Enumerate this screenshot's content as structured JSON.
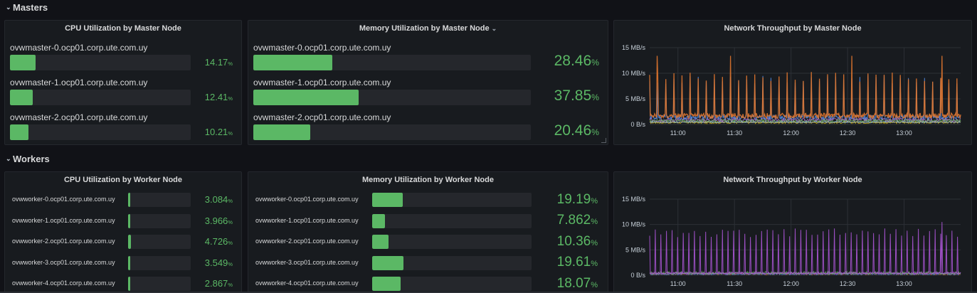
{
  "rows": {
    "masters": {
      "title": "Masters"
    },
    "workers": {
      "title": "Workers"
    }
  },
  "panels": {
    "cpu_masters": {
      "title": "CPU Utilization by Master Node",
      "items": [
        {
          "label": "ovwmaster-0.ocp01.corp.ute.com.uy",
          "value": "14.17",
          "unit": "%",
          "fraction": 0.1417
        },
        {
          "label": "ovwmaster-1.ocp01.corp.ute.com.uy",
          "value": "12.41",
          "unit": "%",
          "fraction": 0.1241
        },
        {
          "label": "ovwmaster-2.ocp01.corp.ute.com.uy",
          "value": "10.21",
          "unit": "%",
          "fraction": 0.1021
        }
      ]
    },
    "mem_masters": {
      "title": "Memory Utilization by Master Node",
      "items": [
        {
          "label": "ovwmaster-0.ocp01.corp.ute.com.uy",
          "value": "28.46",
          "unit": "%",
          "fraction": 0.2846
        },
        {
          "label": "ovwmaster-1.ocp01.corp.ute.com.uy",
          "value": "37.85",
          "unit": "%",
          "fraction": 0.3785
        },
        {
          "label": "ovwmaster-2.ocp01.corp.ute.com.uy",
          "value": "20.46",
          "unit": "%",
          "fraction": 0.2046
        }
      ]
    },
    "net_masters": {
      "title": "Network Throughput by Master Node",
      "y_ticks": [
        "15 MB/s",
        "10 MB/s",
        "5 MB/s",
        "0 B/s"
      ],
      "x_ticks": [
        "11:00",
        "11:30",
        "12:00",
        "12:30",
        "13:00"
      ]
    },
    "cpu_workers": {
      "title": "CPU Utilization by Worker Node",
      "items": [
        {
          "label": "ovwworker-0.ocp01.corp.ute.com.uy",
          "value": "3.084",
          "unit": "%",
          "fraction": 0.03084
        },
        {
          "label": "ovwworker-1.ocp01.corp.ute.com.uy",
          "value": "3.966",
          "unit": "%",
          "fraction": 0.03966
        },
        {
          "label": "ovwworker-2.ocp01.corp.ute.com.uy",
          "value": "4.726",
          "unit": "%",
          "fraction": 0.04726
        },
        {
          "label": "ovwworker-3.ocp01.corp.ute.com.uy",
          "value": "3.549",
          "unit": "%",
          "fraction": 0.03549
        },
        {
          "label": "ovwworker-4.ocp01.corp.ute.com.uy",
          "value": "2.867",
          "unit": "%",
          "fraction": 0.02867
        }
      ]
    },
    "mem_workers": {
      "title": "Memory Utilization by Worker Node",
      "items": [
        {
          "label": "ovwworker-0.ocp01.corp.ute.com.uy",
          "value": "19.19",
          "unit": "%",
          "fraction": 0.1919
        },
        {
          "label": "ovwworker-1.ocp01.corp.ute.com.uy",
          "value": "7.862",
          "unit": "%",
          "fraction": 0.07862
        },
        {
          "label": "ovwworker-2.ocp01.corp.ute.com.uy",
          "value": "10.36",
          "unit": "%",
          "fraction": 0.1036
        },
        {
          "label": "ovwworker-3.ocp01.corp.ute.com.uy",
          "value": "19.61",
          "unit": "%",
          "fraction": 0.1961
        },
        {
          "label": "ovwworker-4.ocp01.corp.ute.com.uy",
          "value": "18.07",
          "unit": "%",
          "fraction": 0.1807
        }
      ]
    },
    "net_workers": {
      "title": "Network Throughput by Worker Node",
      "y_ticks": [
        "15 MB/s",
        "10 MB/s",
        "5 MB/s",
        "0 B/s"
      ],
      "x_ticks": [
        "11:00",
        "11:30",
        "12:00",
        "12:30",
        "13:00"
      ]
    }
  },
  "colors": {
    "background": "#111217",
    "panel": "#181b1f",
    "bar_fill": "#5bb865",
    "bar_track": "#25272c",
    "value_text": "#5bb865",
    "series_master": [
      "#e0752d",
      "#5794f2",
      "#f2cc0c",
      "#b877d9",
      "#73bf69",
      "#8ab8ff"
    ],
    "series_worker": [
      "#a352cc",
      "#73bf69",
      "#e0752d",
      "#5794f2"
    ]
  },
  "chart_data": [
    {
      "type": "line",
      "title": "Network Throughput by Master Node",
      "x_range": [
        "10:45",
        "13:30"
      ],
      "x_ticks": [
        "11:00",
        "11:30",
        "12:00",
        "12:30",
        "13:00"
      ],
      "ylim": [
        0,
        15
      ],
      "y_unit": "MB/s",
      "y_ticks": [
        "15 MB/s",
        "10 MB/s",
        "5 MB/s",
        "0 B/s"
      ],
      "grid": true,
      "pattern": "periodic spikes roughly every 3 minutes near 10 MB/s, occasional peaks near 13 MB/s, baseline about 1-2 MB/s"
    },
    {
      "type": "line",
      "title": "Network Throughput by Worker Node",
      "x_range": [
        "10:45",
        "13:30"
      ],
      "x_ticks": [
        "11:00",
        "11:30",
        "12:00",
        "12:30",
        "13:00"
      ],
      "ylim": [
        0,
        15
      ],
      "y_unit": "MB/s",
      "y_ticks": [
        "15 MB/s",
        "10 MB/s",
        "5 MB/s",
        "0 B/s"
      ],
      "grid": true,
      "pattern": "periodic spikes roughly every 3 minutes near 9 MB/s, baseline under 1 MB/s"
    }
  ]
}
